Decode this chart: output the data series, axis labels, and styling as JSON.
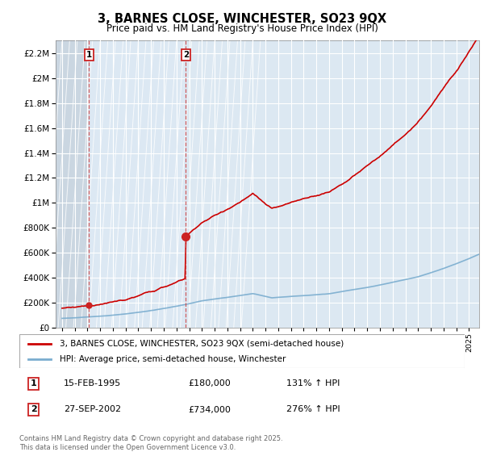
{
  "title": "3, BARNES CLOSE, WINCHESTER, SO23 9QX",
  "subtitle": "Price paid vs. HM Land Registry's House Price Index (HPI)",
  "legend_line1": "3, BARNES CLOSE, WINCHESTER, SO23 9QX (semi-detached house)",
  "legend_line2": "HPI: Average price, semi-detached house, Winchester",
  "footer": "Contains HM Land Registry data © Crown copyright and database right 2025.\nThis data is licensed under the Open Government Licence v3.0.",
  "sale1_date": "15-FEB-1995",
  "sale1_price": 180000,
  "sale1_label": "131% ↑ HPI",
  "sale2_date": "27-SEP-2002",
  "sale2_price": 734000,
  "sale2_label": "276% ↑ HPI",
  "sale1_x": 1995.12,
  "sale2_x": 2002.73,
  "red_color": "#cc0000",
  "blue_color": "#7aadcf",
  "hatch_color": "#c8d8e8",
  "fill_between_color": "#dce8f0",
  "ylim_max": 2300000,
  "xlim_start": 1992.5,
  "xlim_end": 2025.8,
  "yticks": [
    0,
    200000,
    400000,
    600000,
    800000,
    1000000,
    1200000,
    1400000,
    1600000,
    1800000,
    2000000,
    2200000
  ]
}
